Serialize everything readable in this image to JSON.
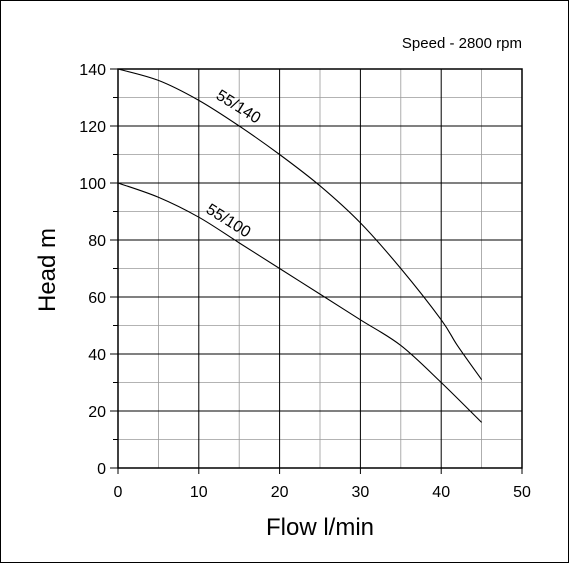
{
  "chart_data": {
    "type": "line",
    "title": "",
    "annotation": "Speed - 2800 rpm",
    "xlabel": "Flow l/min",
    "ylabel": "Head m",
    "xlim": [
      0,
      50
    ],
    "ylim": [
      0,
      140
    ],
    "xticks": [
      "0",
      "10",
      "20",
      "30",
      "40",
      "50"
    ],
    "yticks": [
      "0",
      "20",
      "40",
      "60",
      "80",
      "100",
      "120",
      "140"
    ],
    "grid": true,
    "series": [
      {
        "name": "55/140",
        "x": [
          0,
          5,
          10,
          15,
          20,
          25,
          30,
          35,
          40,
          42,
          45
        ],
        "y": [
          140,
          136,
          129,
          120,
          110,
          99,
          86,
          70,
          52,
          43,
          31
        ]
      },
      {
        "name": "55/100",
        "x": [
          0,
          5,
          10,
          15,
          20,
          25,
          30,
          35,
          40,
          45
        ],
        "y": [
          100,
          95,
          88,
          79,
          70,
          61,
          52,
          43,
          30,
          16
        ]
      }
    ]
  }
}
